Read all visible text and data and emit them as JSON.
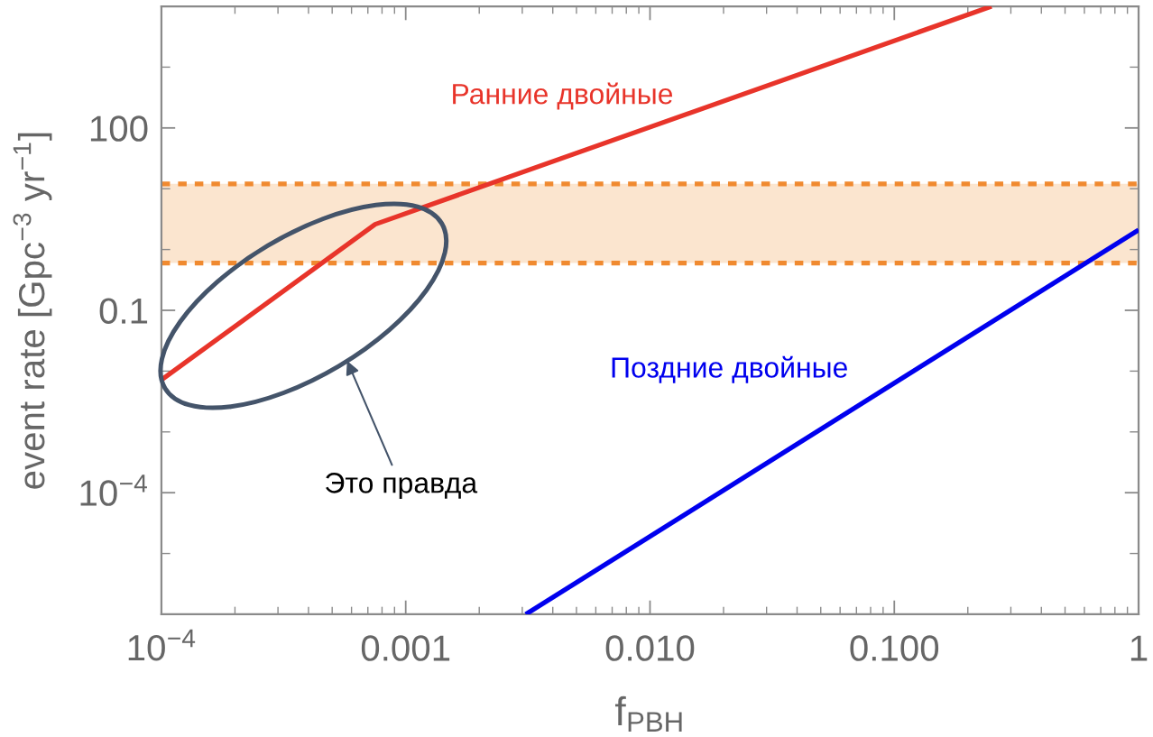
{
  "chart_data": {
    "type": "line",
    "xlabel": "f$_{PBH}$",
    "ylabel": "event rate [Gpc$^{−3}$ yr$^{−1}$]",
    "annotations": [
      "Это правда"
    ],
    "log": "xy",
    "grid": false,
    "xlim": [
      0.0001,
      1
    ],
    "ylim": [
      1e-06,
      10000
    ],
    "xticks": [
      {
        "value": 0.0001,
        "label": "10$^{−4}$"
      },
      0.001,
      {
        "value": 0.01,
        "label": "0.010"
      },
      {
        "value": 0.1,
        "label": "0.100"
      },
      1
    ],
    "yticks": [
      {
        "value": 1e-05,
        "label": null
      },
      {
        "value": 0.0001,
        "label": "10$^{−4}$"
      },
      {
        "value": 0.001,
        "label": null
      },
      {
        "value": 0.01,
        "label": null
      },
      0.1,
      {
        "value": 1,
        "label": null
      },
      {
        "value": 10,
        "label": null
      },
      100,
      {
        "value": 1000,
        "label": null
      }
    ],
    "series": [
      {
        "name": "Ранние двойные",
        "color": "#e8342a",
        "x": [
          0.0001,
          0.00075,
          0.25
        ],
        "values": [
          0.0072,
          2.6,
          10000
        ]
      },
      {
        "name": "Поздние двойные",
        "color": "#0000ee",
        "x": [
          0.0031,
          1
        ],
        "values": [
          1e-06,
          2.1
        ]
      }
    ],
    "bands": [
      {
        "axis": "y",
        "from": 0.6,
        "to": 12,
        "color": "#fbe5cf"
      }
    ],
    "ref_lines": [
      {
        "axis": "y",
        "value": 0.6,
        "color": "#f08a30",
        "line_style": "dashed"
      },
      {
        "axis": "y",
        "value": 12,
        "color": "#f08a30",
        "line_style": "dashed"
      }
    ]
  }
}
